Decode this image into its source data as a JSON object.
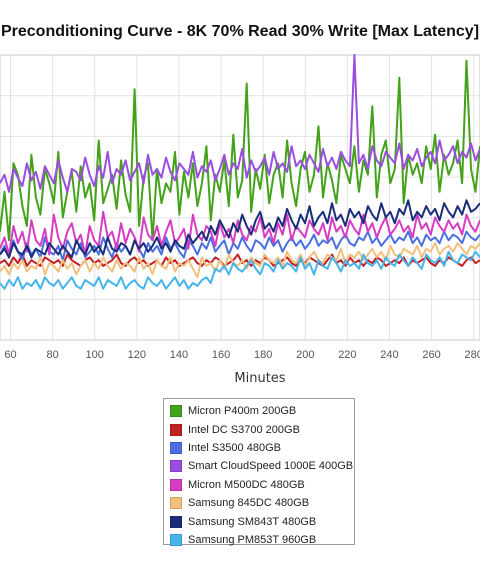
{
  "chart_data": {
    "type": "line",
    "title": "Preconditioning Curve - 8K 70% Read 30% Write [Max Latency]",
    "xlabel": "Minutes",
    "ylabel": "",
    "x_ticks": [
      60,
      80,
      100,
      120,
      140,
      160,
      180,
      200,
      220,
      240,
      260,
      280
    ],
    "xlim": [
      55,
      283
    ],
    "ylim": [
      0,
      100
    ],
    "grid": true,
    "legend_position": "bottom-center",
    "series": [
      {
        "name": "Micron P400m 200GB",
        "color": "#44a11a",
        "values": [
          38,
          52,
          35,
          62,
          58,
          47,
          40,
          65,
          50,
          44,
          60,
          55,
          48,
          66,
          43,
          52,
          59,
          45,
          61,
          50,
          55,
          42,
          70,
          48,
          53,
          58,
          46,
          63,
          51,
          45,
          88,
          40,
          57,
          62,
          35,
          60,
          48,
          55,
          52,
          66,
          44,
          59,
          50,
          62,
          47,
          55,
          68,
          42,
          58,
          52,
          63,
          47,
          72,
          50,
          56,
          90,
          45,
          60,
          53,
          65,
          48,
          58,
          62,
          50,
          70,
          55,
          47,
          60,
          66,
          52,
          58,
          75,
          50,
          62,
          56,
          48,
          65,
          60,
          55,
          68,
          52,
          63,
          58,
          82,
          50,
          65,
          70,
          55,
          60,
          92,
          48,
          65,
          58,
          62,
          55,
          68,
          60,
          72,
          52,
          65,
          58,
          62,
          70,
          55,
          98,
          60,
          52,
          68
        ]
      },
      {
        "name": "Intel DC S3700 200GB",
        "color": "#c22026",
        "values": [
          27,
          28,
          26,
          29,
          27,
          30,
          26,
          28,
          27,
          26,
          29,
          28,
          27,
          28,
          26,
          30,
          28,
          27,
          26,
          28,
          29,
          27,
          28,
          26,
          27,
          28,
          30,
          27,
          26,
          28,
          29,
          27,
          28,
          26,
          27,
          28,
          26,
          29,
          27,
          28,
          26,
          27,
          28,
          29,
          27,
          26,
          28,
          27,
          29,
          28,
          26,
          27,
          28,
          30,
          27,
          28,
          26,
          28,
          27,
          29,
          28,
          26,
          27,
          28,
          29,
          27,
          26,
          28,
          27,
          29,
          28,
          27,
          26,
          28,
          30,
          27,
          28,
          26,
          29,
          27,
          28,
          26,
          28,
          27,
          29,
          28,
          26,
          27,
          28,
          27,
          29,
          26,
          28,
          27,
          28,
          29,
          27,
          26,
          28,
          27,
          29,
          28,
          27,
          26,
          28,
          29,
          27,
          28
        ]
      },
      {
        "name": "Intel S3500 480GB",
        "color": "#4a6fe0",
        "values": [
          30,
          33,
          29,
          35,
          31,
          28,
          34,
          30,
          32,
          29,
          36,
          31,
          30,
          33,
          28,
          35,
          32,
          30,
          34,
          29,
          31,
          33,
          30,
          36,
          32,
          29,
          34,
          31,
          33,
          30,
          35,
          32,
          29,
          34,
          31,
          33,
          30,
          36,
          32,
          34,
          31,
          29,
          35,
          33,
          30,
          34,
          32,
          36,
          31,
          33,
          35,
          30,
          34,
          32,
          36,
          33,
          31,
          35,
          34,
          32,
          36,
          33,
          35,
          31,
          34,
          36,
          33,
          35,
          32,
          34,
          37,
          33,
          35,
          34,
          36,
          32,
          35,
          37,
          34,
          33,
          36,
          35,
          38,
          34,
          36,
          33,
          35,
          37,
          34,
          36,
          35,
          38,
          34,
          36,
          33,
          37,
          35,
          36,
          34,
          38,
          35,
          37,
          36,
          34,
          38,
          36,
          35,
          37
        ]
      },
      {
        "name": "Smart CloudSpeed 1000E 400GB",
        "color": "#9b4de0",
        "values": [
          55,
          58,
          52,
          60,
          57,
          54,
          62,
          56,
          59,
          53,
          61,
          58,
          55,
          63,
          57,
          52,
          60,
          59,
          56,
          64,
          58,
          54,
          61,
          57,
          66,
          55,
          60,
          58,
          63,
          56,
          59,
          62,
          55,
          65,
          58,
          60,
          57,
          64,
          59,
          56,
          62,
          60,
          58,
          66,
          57,
          61,
          59,
          63,
          56,
          60,
          65,
          58,
          62,
          60,
          67,
          57,
          63,
          59,
          61,
          64,
          58,
          66,
          60,
          62,
          59,
          68,
          61,
          63,
          60,
          65,
          62,
          59,
          67,
          61,
          64,
          60,
          66,
          63,
          61,
          100,
          62,
          65,
          60,
          68,
          63,
          61,
          66,
          64,
          62,
          69,
          60,
          65,
          63,
          67,
          61,
          64,
          66,
          62,
          70,
          63,
          65,
          68,
          62,
          66,
          64,
          69,
          63,
          67
        ]
      },
      {
        "name": "Micron M500DC 480GB",
        "color": "#d63cc4",
        "values": [
          32,
          36,
          30,
          40,
          34,
          38,
          31,
          42,
          35,
          33,
          39,
          30,
          44,
          36,
          32,
          38,
          41,
          34,
          37,
          30,
          40,
          35,
          33,
          45,
          36,
          38,
          32,
          41,
          34,
          39,
          36,
          31,
          43,
          37,
          35,
          40,
          33,
          38,
          42,
          34,
          36,
          39,
          32,
          44,
          37,
          35,
          40,
          38,
          33,
          41,
          36,
          39,
          34,
          42,
          37,
          35,
          40,
          38,
          43,
          36,
          39,
          34,
          41,
          37,
          44,
          35,
          40,
          38,
          36,
          42,
          39,
          37,
          41,
          35,
          43,
          38,
          40,
          36,
          42,
          39,
          37,
          44,
          38,
          41,
          36,
          40,
          43,
          37,
          39,
          42,
          38,
          40,
          36,
          44,
          39,
          41,
          37,
          43,
          40,
          38,
          42,
          39,
          41,
          37,
          44,
          40,
          38,
          42
        ]
      },
      {
        "name": "Samsung 845DC 480GB",
        "color": "#f2bf7c",
        "values": [
          24,
          26,
          23,
          27,
          25,
          28,
          24,
          26,
          25,
          29,
          23,
          27,
          26,
          24,
          28,
          25,
          27,
          23,
          26,
          28,
          24,
          27,
          25,
          29,
          26,
          24,
          28,
          25,
          27,
          26,
          24,
          29,
          25,
          27,
          23,
          28,
          26,
          25,
          29,
          24,
          27,
          26,
          28,
          25,
          22,
          29,
          26,
          27,
          24,
          28,
          25,
          30,
          27,
          26,
          28,
          25,
          29,
          27,
          26,
          30,
          28,
          27,
          29,
          26,
          31,
          28,
          27,
          30,
          26,
          29,
          31,
          28,
          27,
          30,
          29,
          28,
          32,
          27,
          30,
          29,
          31,
          28,
          30,
          32,
          29,
          31,
          28,
          33,
          30,
          29,
          32,
          31,
          30,
          33,
          29,
          32,
          31,
          34,
          30,
          32,
          33,
          31,
          34,
          32,
          30,
          33,
          32,
          34
        ]
      },
      {
        "name": "Samsung SM843T 480GB",
        "color": "#1a2d7a",
        "values": [
          30,
          32,
          29,
          34,
          31,
          30,
          33,
          29,
          32,
          31,
          30,
          34,
          32,
          30,
          33,
          31,
          29,
          35,
          32,
          30,
          34,
          31,
          33,
          30,
          36,
          32,
          31,
          34,
          33,
          30,
          35,
          32,
          34,
          31,
          33,
          36,
          32,
          34,
          31,
          35,
          33,
          32,
          37,
          34,
          36,
          38,
          35,
          40,
          37,
          42,
          39,
          36,
          41,
          38,
          44,
          40,
          37,
          42,
          45,
          39,
          41,
          38,
          43,
          40,
          46,
          42,
          39,
          44,
          41,
          47,
          40,
          43,
          45,
          41,
          48,
          42,
          44,
          40,
          46,
          43,
          45,
          41,
          47,
          44,
          42,
          48,
          43,
          45,
          41,
          46,
          44,
          49,
          42,
          45,
          43,
          47,
          44,
          46,
          42,
          48,
          45,
          43,
          47,
          44,
          49,
          45,
          46,
          48
        ]
      },
      {
        "name": "Samsung PM853T 960GB",
        "color": "#45b4ea",
        "values": [
          20,
          18,
          21,
          19,
          22,
          18,
          20,
          19,
          21,
          18,
          22,
          20,
          19,
          21,
          18,
          20,
          22,
          19,
          18,
          21,
          20,
          19,
          22,
          18,
          21,
          20,
          19,
          22,
          18,
          20,
          21,
          19,
          18,
          22,
          20,
          19,
          21,
          18,
          20,
          22,
          19,
          21,
          18,
          20,
          19,
          21,
          22,
          20,
          25,
          24,
          26,
          23,
          27,
          25,
          24,
          26,
          28,
          25,
          23,
          27,
          26,
          24,
          28,
          25,
          27,
          26,
          24,
          29,
          25,
          27,
          23,
          28,
          26,
          25,
          29,
          27,
          24,
          28,
          26,
          27,
          25,
          30,
          27,
          26,
          28,
          25,
          29,
          27,
          26,
          30,
          28,
          26,
          29,
          27,
          25,
          30,
          28,
          27,
          29,
          26,
          31,
          28,
          27,
          30,
          29,
          28,
          31,
          29
        ]
      }
    ]
  }
}
